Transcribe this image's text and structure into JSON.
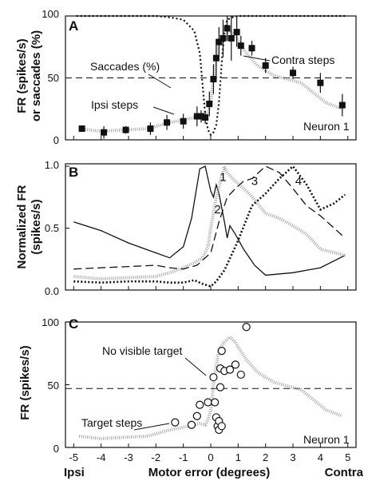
{
  "figure": {
    "x_tick_labels": [
      "-5",
      "-4",
      "-3",
      "-2",
      "-1",
      "0",
      "1",
      "2",
      "3",
      "4",
      "5"
    ],
    "x_left_label": "Ipsi",
    "x_center_label": "Motor error (degrees)",
    "x_right_label": "Contra"
  },
  "colors": {
    "gray_curve": "#a8a8a8",
    "black": "#111111"
  },
  "chart_data": [
    {
      "panel": "A",
      "type": "line",
      "ylabel_line1": "FR (spikes/s)",
      "ylabel_line2": "or saccades (%)",
      "yticks": [
        "0",
        "50",
        "100"
      ],
      "ylim": [
        0,
        100
      ],
      "xlim": [
        -5.3,
        5.3
      ],
      "reference_line": 50,
      "annotations": {
        "saccades": "Saccades (%)",
        "contra": "Contra steps",
        "ipsi": "Ipsi steps",
        "neuron": "Neuron 1"
      },
      "saccade_curve": {
        "x": [
          -4.9,
          -4,
          -3,
          -2,
          -1.5,
          -1,
          -0.6,
          -0.4,
          -0.3,
          -0.2,
          -0.1,
          0,
          0.1,
          0.2,
          0.3,
          0.4,
          0.5,
          0.6,
          0.8,
          1,
          2,
          3,
          4,
          4.9
        ],
        "y": [
          100,
          100,
          100,
          100,
          99,
          97,
          88,
          70,
          45,
          20,
          8,
          4,
          6,
          12,
          30,
          62,
          88,
          97,
          99,
          100,
          100,
          100,
          100,
          100
        ]
      },
      "fr_mean": {
        "x": [
          -4.8,
          -4,
          -3.2,
          -2.3,
          -1.5,
          -1,
          -0.6,
          -0.4,
          -0.2,
          -0.1,
          0,
          0.1,
          0.2,
          0.3,
          0.5,
          0.7,
          0.9,
          1,
          1.3,
          1.7,
          2.3,
          3.3,
          4.2,
          4.8
        ],
        "y": [
          9,
          7,
          8,
          9,
          14,
          16,
          18,
          19,
          18,
          22,
          30,
          50,
          65,
          78,
          84,
          88,
          84,
          80,
          70,
          60,
          52,
          46,
          30,
          25
        ]
      },
      "fr_points": {
        "x": [
          -4.7,
          -3.9,
          -3.1,
          -2.2,
          -1.6,
          -1,
          -0.5,
          -0.35,
          -0.2,
          -0.05,
          0.1,
          0.2,
          0.3,
          0.45,
          0.6,
          0.75,
          0.95,
          1.1,
          1.5,
          2,
          3,
          4,
          4.8
        ],
        "y": [
          9,
          6,
          8,
          9,
          14,
          15,
          19,
          19,
          18,
          29,
          49,
          66,
          79,
          82,
          90,
          82,
          87,
          76,
          74,
          60,
          54,
          46,
          28
        ],
        "err": [
          2,
          5,
          3,
          5,
          6,
          6,
          8,
          5,
          5,
          10,
          12,
          15,
          12,
          15,
          10,
          18,
          12,
          8,
          6,
          6,
          5,
          8,
          9
        ]
      }
    },
    {
      "panel": "B",
      "type": "line",
      "ylabel_line1": "Normalized FR",
      "ylabel_line2": "(spikes/s)",
      "yticks": [
        "0.0",
        "0.5",
        "1.0"
      ],
      "ylim": [
        0,
        1.02
      ],
      "xlim": [
        -5.3,
        5.3
      ],
      "series": [
        {
          "name": "2",
          "style": "solid",
          "x": [
            -5,
            -4,
            -3,
            -2,
            -1.5,
            -1,
            -0.7,
            -0.4,
            -0.2,
            0,
            0.1,
            0.2,
            0.3,
            0.5,
            0.6,
            0.7,
            0.9,
            1.2,
            1.6,
            2,
            3,
            4,
            4.9
          ],
          "y": [
            0.55,
            0.48,
            0.38,
            0.3,
            0.26,
            0.35,
            0.58,
            0.98,
            1.0,
            0.8,
            0.75,
            0.85,
            0.78,
            0.55,
            0.42,
            0.52,
            0.45,
            0.33,
            0.2,
            0.12,
            0.14,
            0.18,
            0.28
          ]
        },
        {
          "name": "1",
          "style": "gray",
          "x": [
            -5,
            -4,
            -3,
            -2,
            -1.5,
            -1,
            -0.6,
            -0.3,
            -0.1,
            0,
            0.2,
            0.4,
            0.5,
            0.6,
            0.8,
            1,
            1.4,
            2,
            2.5,
            3,
            3.5,
            4,
            4.9
          ],
          "y": [
            0.11,
            0.09,
            0.1,
            0.11,
            0.14,
            0.18,
            0.22,
            0.26,
            0.35,
            0.5,
            0.75,
            0.92,
            1.0,
            0.95,
            0.9,
            0.86,
            0.78,
            0.62,
            0.58,
            0.52,
            0.45,
            0.33,
            0.28
          ]
        },
        {
          "name": "3",
          "style": "dashed",
          "x": [
            -5,
            -4,
            -3,
            -2,
            -1.5,
            -1,
            -0.5,
            0,
            0.3,
            0.6,
            0.9,
            1.2,
            1.5,
            2,
            2.5,
            3,
            3.5,
            4,
            4.9
          ],
          "y": [
            0.17,
            0.18,
            0.19,
            0.2,
            0.18,
            0.17,
            0.2,
            0.3,
            0.55,
            0.75,
            0.82,
            0.88,
            0.9,
            1.0,
            0.95,
            0.82,
            0.68,
            0.6,
            0.42
          ]
        },
        {
          "name": "4",
          "style": "dotted",
          "x": [
            -5,
            -4,
            -3,
            -2,
            -1.5,
            -1,
            -0.6,
            -0.3,
            0,
            0.2,
            0.5,
            1,
            1.5,
            2,
            2.5,
            3,
            3.5,
            4,
            4.5,
            4.9
          ],
          "y": [
            0.07,
            0.06,
            0.07,
            0.07,
            0.06,
            0.06,
            0.08,
            0.05,
            0.03,
            0.07,
            0.16,
            0.4,
            0.68,
            0.78,
            0.9,
            1.0,
            0.85,
            0.65,
            0.7,
            0.77
          ]
        }
      ]
    },
    {
      "panel": "C",
      "type": "scatter",
      "ylabel": "FR (spikes/s)",
      "yticks": [
        "0",
        "50",
        "100"
      ],
      "ylim": [
        0,
        100
      ],
      "xlim": [
        -5.3,
        5.3
      ],
      "reference_line": 47,
      "annotations": {
        "no_target": "No visible target",
        "target_steps": "Target steps",
        "neuron": "Neuron 1"
      },
      "fr_mean": {
        "x": [
          -4.8,
          -4,
          -3.2,
          -2.3,
          -1.5,
          -1,
          -0.6,
          -0.4,
          -0.2,
          -0.1,
          0,
          0.1,
          0.2,
          0.3,
          0.5,
          0.7,
          0.9,
          1,
          1.3,
          1.7,
          2.3,
          3.3,
          4.2,
          4.8
        ],
        "y": [
          9,
          7,
          8,
          9,
          14,
          16,
          18,
          19,
          18,
          22,
          30,
          50,
          65,
          78,
          84,
          88,
          84,
          80,
          70,
          60,
          52,
          46,
          30,
          25
        ]
      },
      "points": {
        "x": [
          -1.3,
          -0.7,
          -0.4,
          -0.5,
          -0.1,
          0.1,
          0.15,
          0.2,
          0.25,
          0.3,
          0.35,
          0.4,
          0.35,
          0.5,
          0.7,
          0.9,
          1.1,
          1.3,
          0.3,
          0.4
        ],
        "y": [
          20,
          18,
          34,
          25,
          36,
          56,
          36,
          24,
          17,
          14,
          63,
          77,
          48,
          61,
          62,
          66,
          58,
          96,
          21,
          17
        ]
      }
    }
  ]
}
